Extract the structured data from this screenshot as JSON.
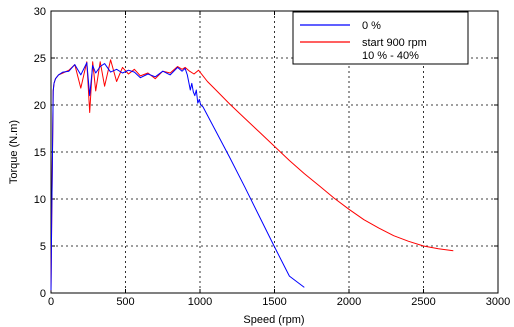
{
  "chart_data": {
    "type": "line",
    "title": "",
    "xlabel": "Speed (rpm)",
    "ylabel": "Torque (N.m)",
    "xlim": [
      0,
      3000
    ],
    "ylim": [
      0,
      30
    ],
    "xticks": [
      "0",
      "500",
      "1000",
      "1500",
      "2000",
      "2500",
      "3000"
    ],
    "yticks": [
      "0",
      "5",
      "10",
      "15",
      "20",
      "25",
      "30"
    ],
    "grid": "dashed",
    "legend_position": "top-right",
    "series": [
      {
        "name": "0 %",
        "color": "#0000ff",
        "x": [
          0,
          5,
          10,
          15,
          20,
          30,
          50,
          80,
          120,
          160,
          200,
          240,
          260,
          280,
          300,
          330,
          360,
          400,
          440,
          480,
          520,
          560,
          600,
          650,
          700,
          750,
          800,
          850,
          880,
          900,
          915,
          925,
          935,
          945,
          955,
          965,
          975,
          985,
          995,
          1005,
          1020,
          1100,
          1200,
          1300,
          1400,
          1500,
          1600,
          1700
        ],
        "y": [
          0.3,
          8,
          15,
          21.5,
          22.3,
          22.8,
          23.2,
          23.5,
          23.6,
          24.3,
          23.2,
          24.5,
          21,
          24.2,
          23.4,
          24.1,
          24.4,
          23.5,
          23.8,
          23.4,
          23.7,
          23.5,
          22.9,
          23.3,
          23.0,
          23.6,
          23.2,
          24.0,
          23.6,
          23.9,
          23.2,
          22.4,
          21.6,
          22.3,
          21.4,
          21.0,
          21.6,
          20.2,
          20.6,
          20.0,
          19.8,
          17.4,
          14.4,
          11.3,
          8.1,
          4.9,
          1.8,
          0.6
        ]
      },
      {
        "name": "start 900 rpm\n10 % - 40%",
        "color": "#ff0000",
        "x": [
          0,
          5,
          10,
          15,
          20,
          30,
          50,
          80,
          120,
          160,
          200,
          240,
          260,
          280,
          300,
          330,
          360,
          400,
          440,
          480,
          520,
          560,
          600,
          650,
          700,
          750,
          800,
          850,
          880,
          900,
          930,
          960,
          990,
          1000,
          1050,
          1100,
          1200,
          1300,
          1400,
          1500,
          1600,
          1700,
          1800,
          1900,
          2000,
          2100,
          2200,
          2300,
          2400,
          2500,
          2600,
          2700
        ],
        "y": [
          0.3,
          8,
          15,
          21.5,
          22.3,
          22.8,
          23.2,
          23.4,
          23.7,
          24.3,
          21.8,
          24.6,
          19.2,
          24.6,
          21.5,
          24.6,
          22,
          24.8,
          22.5,
          24.0,
          23.3,
          23.8,
          23.1,
          23.4,
          22.8,
          23.6,
          23.4,
          24.1,
          23.8,
          24.0,
          23.6,
          23.3,
          23.7,
          23.5,
          22.5,
          21.7,
          20.1,
          18.6,
          17.1,
          15.6,
          14.1,
          12.7,
          11.4,
          10.1,
          8.9,
          7.8,
          6.9,
          6.1,
          5.5,
          5.0,
          4.7,
          4.5
        ]
      }
    ]
  }
}
